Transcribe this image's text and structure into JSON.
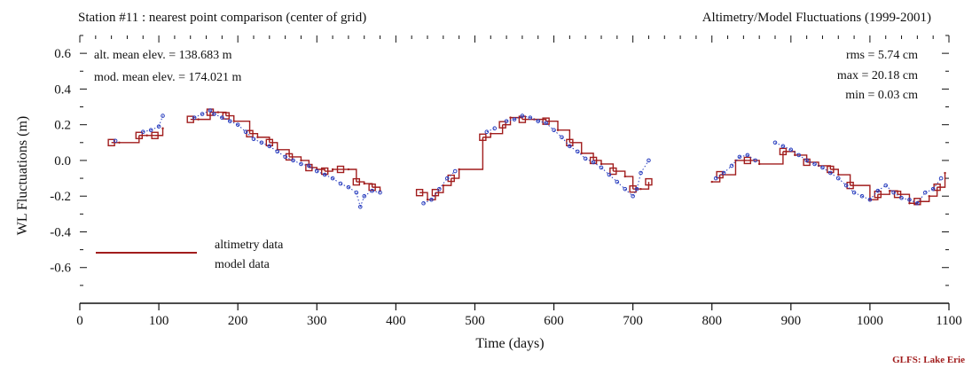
{
  "header": {
    "left_title": "Station #11 : nearest point comparison (center of grid)",
    "right_title": "Altimetry/Model Fluctuations (1999-2001)"
  },
  "stats": {
    "alt_mean": "alt. mean elev. = 138.683      m",
    "mod_mean": "mod. mean elev. = 174.021      m",
    "rms": "rms =   5.74 cm",
    "max": "max =  20.18 cm",
    "min": "min =   0.03 cm"
  },
  "legend": {
    "altimetry_label": "altimetry data",
    "model_label": "model data"
  },
  "credit": "GLFS: Lake Erie",
  "colors": {
    "altimetry": "#a11d1d",
    "model": "#2a3fbf",
    "axis": "#111111"
  },
  "chart_data": {
    "type": "line",
    "xlabel": "Time (days)",
    "ylabel": "WL Fluctuations (m)",
    "xlim": [
      0,
      1100
    ],
    "ylim": [
      -0.8,
      0.7
    ],
    "x_ticks": [
      0,
      100,
      200,
      300,
      400,
      500,
      600,
      700,
      800,
      900,
      1000,
      1100
    ],
    "x_tick_labels": [
      "0",
      "100",
      "200",
      "300",
      "400",
      "500",
      "600",
      "700",
      "800",
      "900",
      "1000",
      "1100"
    ],
    "y_ticks": [
      0.6,
      0.4,
      0.2,
      0.0,
      -0.2,
      -0.4,
      -0.6
    ],
    "y_tick_labels": [
      "0.6",
      "0.4",
      "0.2",
      "0.0",
      "-0.2",
      "-0.4",
      "-0.6"
    ],
    "grid": false,
    "legend_position": "lower-left",
    "series": [
      {
        "name": "altimetry data",
        "style": "step-squares",
        "x": [
          40,
          50,
          75,
          85,
          95,
          105,
          140,
          150,
          165,
          175,
          185,
          195,
          215,
          225,
          240,
          250,
          265,
          280,
          290,
          300,
          310,
          320,
          330,
          340,
          350,
          360,
          370,
          380,
          430,
          440,
          450,
          460,
          470,
          480,
          510,
          520,
          535,
          545,
          560,
          575,
          590,
          605,
          620,
          635,
          650,
          660,
          675,
          690,
          700,
          710,
          720,
          800,
          810,
          830,
          845,
          860,
          890,
          905,
          920,
          935,
          950,
          960,
          975,
          1000,
          1010,
          1025,
          1035,
          1050,
          1060,
          1075,
          1085,
          1095
        ],
        "values": [
          0.1,
          0.1,
          0.14,
          0.14,
          0.14,
          0.18,
          0.23,
          0.23,
          0.27,
          0.27,
          0.25,
          0.22,
          0.15,
          0.13,
          0.1,
          0.06,
          0.02,
          0.0,
          -0.04,
          -0.05,
          -0.06,
          -0.05,
          -0.05,
          -0.05,
          -0.12,
          -0.13,
          -0.15,
          -0.17,
          -0.18,
          -0.22,
          -0.18,
          -0.14,
          -0.1,
          -0.05,
          0.13,
          0.15,
          0.2,
          0.24,
          0.23,
          0.23,
          0.22,
          0.17,
          0.1,
          0.04,
          0.0,
          -0.02,
          -0.06,
          -0.09,
          -0.16,
          -0.16,
          -0.12,
          -0.12,
          -0.08,
          0.0,
          0.0,
          -0.02,
          0.05,
          0.03,
          -0.01,
          -0.03,
          -0.05,
          -0.08,
          -0.14,
          -0.22,
          -0.19,
          -0.17,
          -0.19,
          -0.24,
          -0.23,
          -0.2,
          -0.15,
          -0.07
        ]
      },
      {
        "name": "model data",
        "style": "dots",
        "x": [
          45,
          80,
          90,
          100,
          105,
          145,
          155,
          165,
          170,
          180,
          190,
          200,
          210,
          220,
          230,
          240,
          250,
          260,
          270,
          280,
          290,
          300,
          310,
          320,
          330,
          340,
          350,
          355,
          360,
          370,
          380,
          435,
          445,
          455,
          465,
          475,
          515,
          525,
          540,
          550,
          560,
          570,
          580,
          590,
          600,
          610,
          620,
          630,
          640,
          650,
          660,
          670,
          680,
          690,
          700,
          705,
          710,
          720,
          805,
          815,
          825,
          835,
          845,
          855,
          880,
          890,
          900,
          910,
          920,
          930,
          940,
          950,
          960,
          970,
          980,
          990,
          1000,
          1010,
          1020,
          1030,
          1040,
          1050,
          1060,
          1070,
          1080,
          1090
        ],
        "values": [
          0.11,
          0.16,
          0.17,
          0.19,
          0.25,
          0.24,
          0.26,
          0.28,
          0.26,
          0.24,
          0.22,
          0.2,
          0.16,
          0.12,
          0.1,
          0.08,
          0.05,
          0.02,
          0.0,
          -0.02,
          -0.03,
          -0.06,
          -0.08,
          -0.1,
          -0.13,
          -0.15,
          -0.18,
          -0.26,
          -0.2,
          -0.17,
          -0.18,
          -0.24,
          -0.22,
          -0.16,
          -0.1,
          -0.06,
          0.16,
          0.18,
          0.22,
          0.23,
          0.25,
          0.24,
          0.22,
          0.21,
          0.17,
          0.13,
          0.08,
          0.05,
          0.01,
          -0.01,
          -0.04,
          -0.08,
          -0.12,
          -0.16,
          -0.2,
          -0.16,
          -0.07,
          0.0,
          -0.1,
          -0.07,
          -0.03,
          0.02,
          0.03,
          0.0,
          0.1,
          0.08,
          0.06,
          0.03,
          0.0,
          -0.02,
          -0.04,
          -0.07,
          -0.1,
          -0.14,
          -0.18,
          -0.2,
          -0.22,
          -0.17,
          -0.14,
          -0.18,
          -0.21,
          -0.22,
          -0.24,
          -0.18,
          -0.16,
          -0.1
        ]
      }
    ]
  }
}
